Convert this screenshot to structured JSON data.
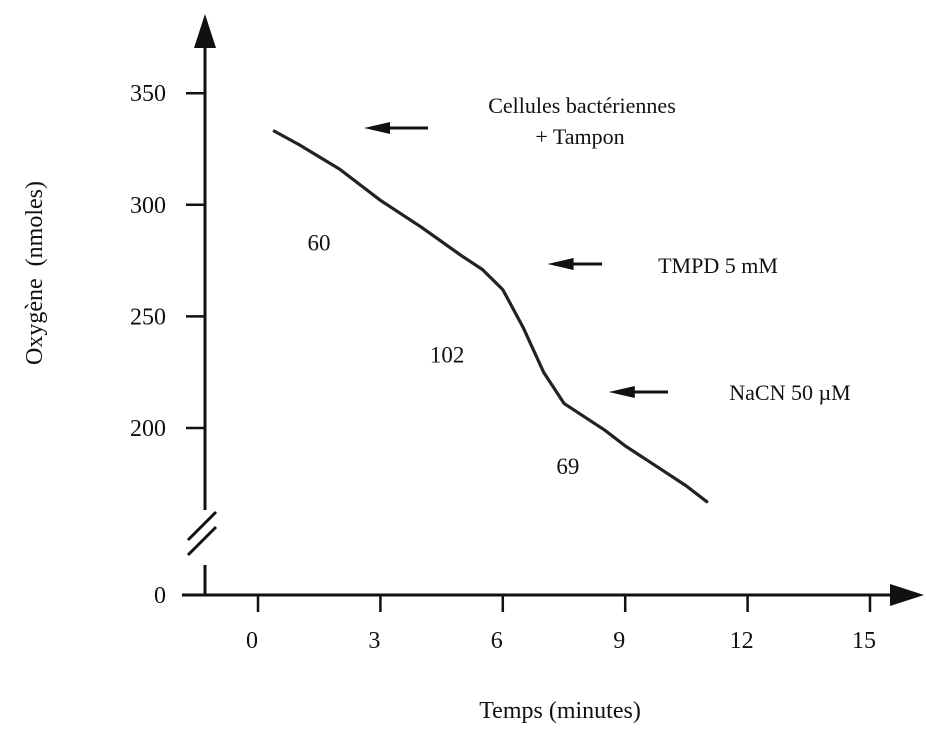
{
  "chart_data": {
    "type": "line",
    "xlabel": "Temps (minutes)",
    "ylabel": "Oxygène  (nmoles)",
    "x_ticks": [
      "0",
      "3",
      "6",
      "9",
      "12",
      "15"
    ],
    "x_tick_values": [
      0,
      3,
      6,
      9,
      12,
      15
    ],
    "y_ticks": [
      "0",
      "200",
      "250",
      "300",
      "350"
    ],
    "y_tick_values": [
      0,
      200,
      250,
      300,
      350
    ],
    "y_axis_break": true,
    "xlim": [
      0,
      16
    ],
    "ylim_upper_segment": [
      160,
      370
    ],
    "grid": false,
    "series": [
      {
        "points": [
          [
            0.4,
            333
          ],
          [
            1.0,
            327
          ],
          [
            2.0,
            316
          ],
          [
            3.0,
            302
          ],
          [
            4.0,
            290
          ],
          [
            5.0,
            277
          ],
          [
            5.5,
            271
          ],
          [
            6.0,
            262
          ],
          [
            6.5,
            245
          ],
          [
            7.0,
            225
          ],
          [
            7.5,
            211
          ],
          [
            8.0,
            205
          ],
          [
            8.5,
            199
          ],
          [
            9.0,
            192
          ],
          [
            9.5,
            186
          ],
          [
            10.0,
            180
          ],
          [
            10.5,
            174
          ],
          [
            11.0,
            167
          ]
        ]
      }
    ],
    "annotations": [
      {
        "id": "a1",
        "lines": [
          "Cellules bactériennes",
          "+ Tampon"
        ],
        "arrow_to": [
          2.5,
          330
        ]
      },
      {
        "id": "a2",
        "lines": [
          "TMPD 5 mM"
        ],
        "arrow_to": [
          7.0,
          274
        ]
      },
      {
        "id": "a3",
        "lines": [
          "NaCN 50 µM"
        ],
        "arrow_to": [
          8.5,
          217
        ]
      }
    ],
    "rate_labels": [
      {
        "text": "60",
        "x": 1.8,
        "y": 283
      },
      {
        "text": "102",
        "x": 4.8,
        "y": 233
      },
      {
        "text": "69",
        "x": 7.9,
        "y": 183
      }
    ]
  }
}
